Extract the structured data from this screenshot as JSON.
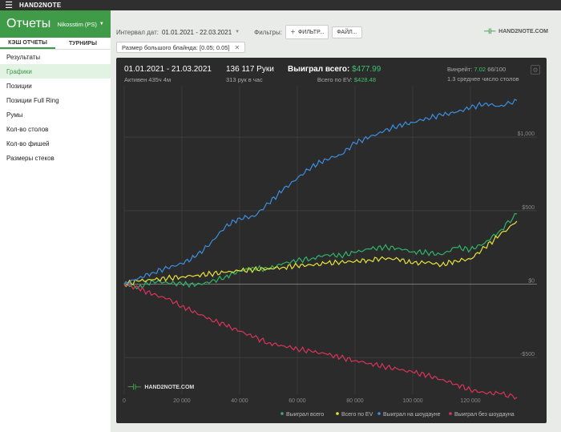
{
  "app": {
    "brand": "HAND2NOTE",
    "title": "Отчеты",
    "player": "Nikosstim (PS)"
  },
  "sidebar": {
    "tabs": [
      "КЭШ ОТЧЕТЫ",
      "ТУРНИРЫ"
    ],
    "items": [
      {
        "label": "Результаты",
        "active": false
      },
      {
        "label": "Графики",
        "active": true
      },
      {
        "label": "Позиции",
        "active": false
      },
      {
        "label": "Позиции Full Ring",
        "active": false
      },
      {
        "label": "Румы",
        "active": false
      },
      {
        "label": "Кол-во столов",
        "active": false
      },
      {
        "label": "Кол-во фишей",
        "active": false
      },
      {
        "label": "Размеры стеков",
        "active": false
      }
    ]
  },
  "toolbar": {
    "date_label": "Интервал дат:",
    "date_value": "01.01.2021 - 22.03.2021",
    "filters_label": "Фильтры:",
    "filter_button": "ФИЛЬТР...",
    "file_button": "ФАЙЛ...",
    "logo_text": "HAND2NOTE.COM"
  },
  "filter_chip": "Размер большого блайнда: [0.05; 0.05]",
  "stats": {
    "period": "01.01.2021 - 21.03.2021",
    "active": "Активен 435ч 4м",
    "hands": "136 117 Руки",
    "hands_per_hour": "313 рук в час",
    "won_label": "Выиграл всего:",
    "won_value": "$477.99",
    "ev_label": "Всего по EV:",
    "ev_value": "$428.48",
    "winrate_label": "Винрейт:",
    "winrate_value": "7.02",
    "winrate_suffix": "66/100",
    "tables": "1.3 среднее число столов"
  },
  "chart_logo": "HAND2NOTE.COM",
  "colors": {
    "green": "#2fb46a",
    "yellow": "#e8e23a",
    "blue": "#3b8fe0",
    "red": "#d9345a",
    "accent": "#3f9b48"
  },
  "chart_data": {
    "type": "line",
    "xlabel": "",
    "ylabel": "",
    "xlim": [
      0,
      136117
    ],
    "ylim": [
      -750,
      1350
    ],
    "x_ticks": [
      0,
      20000,
      40000,
      60000,
      80000,
      100000,
      120000
    ],
    "x_tick_labels": [
      "0",
      "20 000",
      "40 000",
      "60 000",
      "80 000",
      "100 000",
      "120 000"
    ],
    "y_ticks": [
      -500,
      0,
      500,
      1000
    ],
    "y_tick_labels": [
      "-$500",
      "$0",
      "$500",
      "$1,000"
    ],
    "legend": "bottom-right",
    "series": [
      {
        "name": "Выиграл всего",
        "color": "#2fb46a",
        "x": [
          0,
          5000,
          10000,
          15000,
          20000,
          25000,
          30000,
          35000,
          40000,
          45000,
          50000,
          55000,
          60000,
          65000,
          70000,
          75000,
          80000,
          85000,
          90000,
          95000,
          100000,
          105000,
          110000,
          115000,
          120000,
          125000,
          130000,
          136117
        ],
        "y": [
          0,
          -20,
          20,
          10,
          0,
          -5,
          15,
          50,
          90,
          110,
          100,
          140,
          160,
          175,
          200,
          195,
          215,
          240,
          250,
          245,
          220,
          215,
          200,
          250,
          235,
          280,
          360,
          478
        ]
      },
      {
        "name": "Всего по EV",
        "color": "#e8e23a",
        "x": [
          0,
          5000,
          10000,
          15000,
          20000,
          25000,
          30000,
          35000,
          40000,
          45000,
          50000,
          55000,
          60000,
          65000,
          70000,
          75000,
          80000,
          85000,
          90000,
          95000,
          100000,
          105000,
          110000,
          115000,
          120000,
          125000,
          130000,
          136117
        ],
        "y": [
          0,
          20,
          30,
          40,
          50,
          60,
          70,
          80,
          90,
          100,
          105,
          115,
          125,
          130,
          140,
          150,
          155,
          165,
          175,
          170,
          140,
          150,
          130,
          160,
          170,
          250,
          330,
          428
        ]
      },
      {
        "name": "Выиграл на шоудауне",
        "color": "#3b8fe0",
        "x": [
          0,
          5000,
          10000,
          15000,
          20000,
          25000,
          30000,
          35000,
          40000,
          45000,
          50000,
          55000,
          60000,
          65000,
          70000,
          75000,
          80000,
          85000,
          90000,
          95000,
          100000,
          105000,
          110000,
          115000,
          120000,
          125000,
          130000,
          136117
        ],
        "y": [
          0,
          40,
          80,
          110,
          140,
          190,
          280,
          390,
          450,
          460,
          550,
          640,
          720,
          800,
          850,
          880,
          960,
          1000,
          1040,
          1080,
          1100,
          1130,
          1150,
          1170,
          1200,
          1230,
          1210,
          1250
        ]
      },
      {
        "name": "Выиграл без шоудауна",
        "color": "#d9345a",
        "x": [
          0,
          5000,
          10000,
          15000,
          20000,
          25000,
          30000,
          35000,
          40000,
          45000,
          50000,
          55000,
          60000,
          65000,
          70000,
          75000,
          80000,
          85000,
          90000,
          95000,
          100000,
          105000,
          110000,
          115000,
          120000,
          125000,
          130000,
          136117
        ],
        "y": [
          0,
          -30,
          -70,
          -100,
          -150,
          -195,
          -240,
          -280,
          -320,
          -360,
          -400,
          -420,
          -440,
          -460,
          -475,
          -500,
          -520,
          -540,
          -560,
          -580,
          -600,
          -620,
          -650,
          -680,
          -720,
          -740,
          -745,
          -770
        ]
      }
    ]
  }
}
